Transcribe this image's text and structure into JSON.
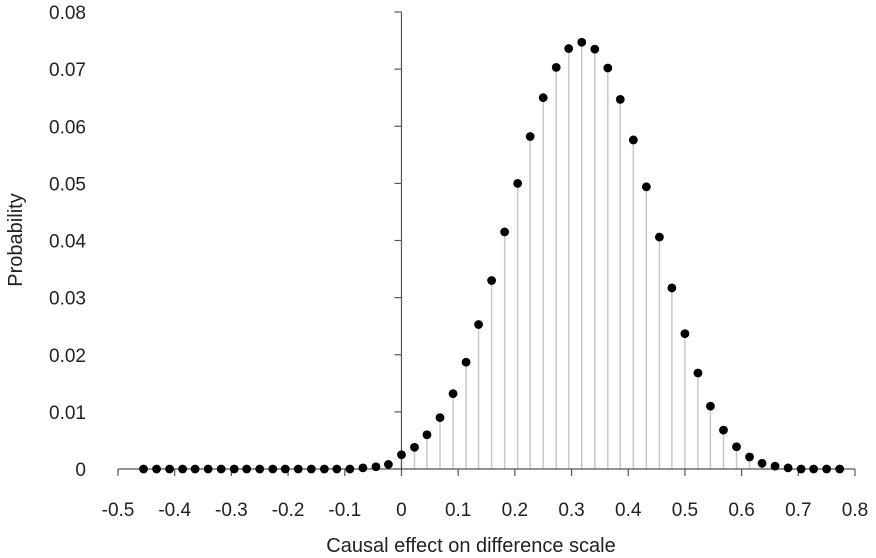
{
  "chart_data": {
    "type": "scatter",
    "style": "stem",
    "title": "",
    "xlabel": "Causal effect on difference scale",
    "ylabel": "Probability",
    "xlim": [
      -0.5,
      0.8
    ],
    "ylim": [
      0,
      0.08
    ],
    "x_ticks": [
      "-0.5",
      "-0.4",
      "-0.3",
      "-0.2",
      "-0.1",
      "0",
      "0.1",
      "0.2",
      "0.3",
      "0.4",
      "0.5",
      "0.6",
      "0.7",
      "0.8"
    ],
    "y_ticks": [
      "0",
      "0.01",
      "0.02",
      "0.03",
      "0.04",
      "0.05",
      "0.06",
      "0.07",
      "0.08"
    ],
    "grid": false,
    "legend": "none",
    "colors": {
      "point": "#000000",
      "stem": "#c8c8c8",
      "axis": "#555555"
    },
    "series": [
      {
        "x": [
          -0.455,
          -0.432,
          -0.409,
          -0.386,
          -0.364,
          -0.341,
          -0.318,
          -0.295,
          -0.273,
          -0.25,
          -0.227,
          -0.205,
          -0.182,
          -0.159,
          -0.136,
          -0.114,
          -0.091,
          -0.068,
          -0.045,
          -0.023,
          0.0,
          0.023,
          0.045,
          0.068,
          0.091,
          0.114,
          0.136,
          0.159,
          0.182,
          0.205,
          0.227,
          0.25,
          0.273,
          0.295,
          0.318,
          0.341,
          0.364,
          0.386,
          0.409,
          0.432,
          0.455,
          0.477,
          0.5,
          0.523,
          0.545,
          0.568,
          0.591,
          0.614,
          0.636,
          0.659,
          0.682,
          0.705,
          0.727,
          0.75,
          0.773
        ],
        "y": [
          0,
          0,
          0,
          0,
          0,
          0,
          0,
          0,
          0,
          0,
          0,
          0,
          0,
          0,
          0,
          0,
          0,
          0.0002,
          0.0004,
          0.0008,
          0.0025,
          0.0038,
          0.006,
          0.009,
          0.0132,
          0.0187,
          0.0253,
          0.033,
          0.0415,
          0.05,
          0.0582,
          0.065,
          0.0703,
          0.0736,
          0.0747,
          0.0735,
          0.0702,
          0.0647,
          0.0576,
          0.0494,
          0.0406,
          0.0317,
          0.0237,
          0.0168,
          0.011,
          0.0068,
          0.0039,
          0.0021,
          0.001,
          0.0005,
          0.0002,
          0,
          0,
          0,
          0
        ]
      }
    ]
  }
}
